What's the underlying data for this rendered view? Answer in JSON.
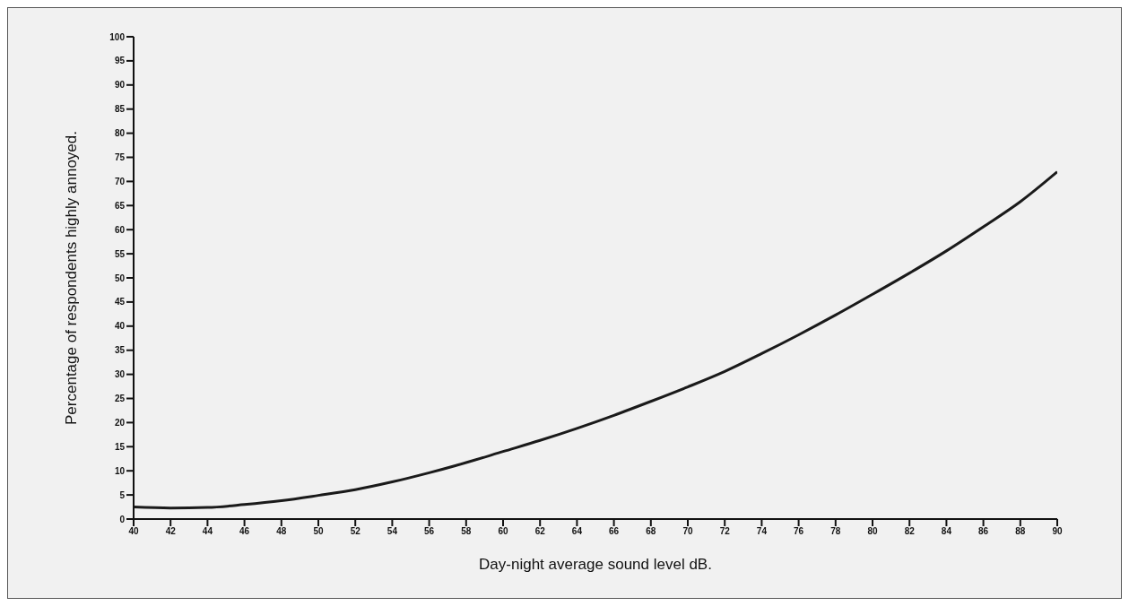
{
  "chart_data": {
    "type": "line",
    "xlabel": "Day-night average sound level dB.",
    "ylabel": "Percentage of respondents highly annoyed.",
    "x": [
      40,
      42,
      44,
      46,
      48,
      50,
      52,
      54,
      56,
      58,
      60,
      62,
      64,
      66,
      68,
      70,
      72,
      74,
      76,
      78,
      80,
      82,
      84,
      86,
      88,
      90
    ],
    "series": [
      {
        "color": "#1a1a1a",
        "values": [
          2.5,
          2.3,
          2.4,
          3,
          3.8,
          4.9,
          6.1,
          7.7,
          9.6,
          11.7,
          14,
          16.3,
          18.8,
          21.5,
          24.4,
          27.4,
          30.6,
          34.3,
          38.2,
          42.3,
          46.6,
          51,
          55.6,
          60.6,
          65.8,
          72
        ]
      }
    ],
    "xlim": [
      40,
      90
    ],
    "xticks": [
      40,
      42,
      44,
      46,
      48,
      50,
      52,
      54,
      56,
      58,
      60,
      62,
      64,
      66,
      68,
      70,
      72,
      74,
      76,
      78,
      80,
      82,
      84,
      86,
      88,
      90
    ],
    "ylim": [
      0,
      100
    ],
    "yticks": [
      0,
      5,
      10,
      15,
      20,
      25,
      30,
      35,
      40,
      45,
      50,
      55,
      60,
      65,
      70,
      75,
      80,
      85,
      90,
      95,
      100
    ],
    "grid": false,
    "legend": false,
    "marker": "none",
    "line_style": "solid"
  }
}
